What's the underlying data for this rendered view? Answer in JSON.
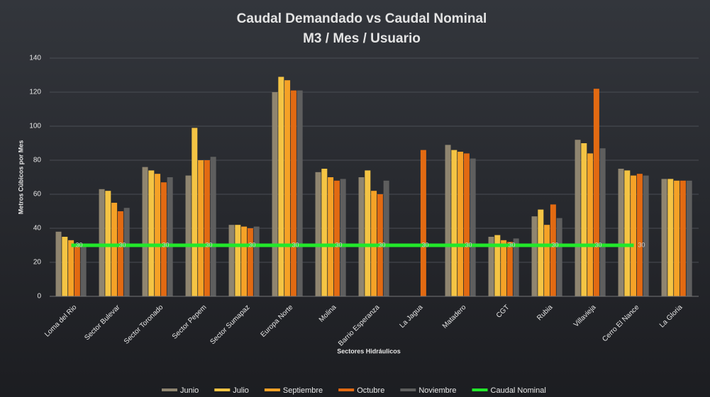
{
  "chart_data": {
    "type": "bar",
    "title": "Caudal Demandado vs Caudal Nominal",
    "subtitle": "M3 / Mes / Usuario",
    "y_label": "Metros Cúbicos por Mes",
    "x_label": "Sectores Hidráulicos",
    "categories": [
      "Loma del Rio",
      "Sector Bulevar",
      "Sector Toronado",
      "Sector Pepem",
      "Sector Sumapaz",
      "Europa Norte",
      "Molina",
      "Barrio Esperanza",
      "La Jagua",
      "Matadero",
      "CGT",
      "Rubia",
      "Villavieja",
      "Cerro El Nance",
      "La Gloria"
    ],
    "series": [
      {
        "name": "Junio",
        "color": "#8f8570",
        "values": [
          38,
          63,
          76,
          71,
          42,
          120,
          73,
          70,
          null,
          89,
          35,
          47,
          92,
          75,
          69
        ]
      },
      {
        "name": "Julio",
        "color": "#f4c444",
        "values": [
          35,
          62,
          74,
          99,
          42,
          129,
          75,
          74,
          null,
          86,
          36,
          51,
          90,
          74,
          69
        ]
      },
      {
        "name": "Septiembre",
        "color": "#f5a227",
        "values": [
          33,
          55,
          72,
          80,
          41,
          127,
          70,
          62,
          null,
          85,
          33,
          42,
          84,
          71,
          68
        ]
      },
      {
        "name": "Octubre",
        "color": "#e26a12",
        "values": [
          31,
          50,
          67,
          80,
          40,
          121,
          68,
          60,
          86,
          84,
          32,
          54,
          122,
          72,
          68
        ]
      },
      {
        "name": "Noviembre",
        "color": "#5e5e5e",
        "values": [
          30,
          52,
          70,
          82,
          41,
          121,
          69,
          68,
          null,
          81,
          34,
          46,
          87,
          71,
          68
        ]
      },
      {
        "name": "Caudal Nominal",
        "type": "line",
        "color": "#22e82a",
        "values": [
          30,
          30,
          30,
          30,
          30,
          30,
          30,
          30,
          30,
          30,
          30,
          30,
          30,
          30,
          null
        ]
      }
    ],
    "ylim": [
      0,
      140
    ],
    "yticks": [
      0,
      20,
      40,
      60,
      80,
      100,
      120,
      140
    ],
    "grid": true,
    "legend": "bottom"
  }
}
